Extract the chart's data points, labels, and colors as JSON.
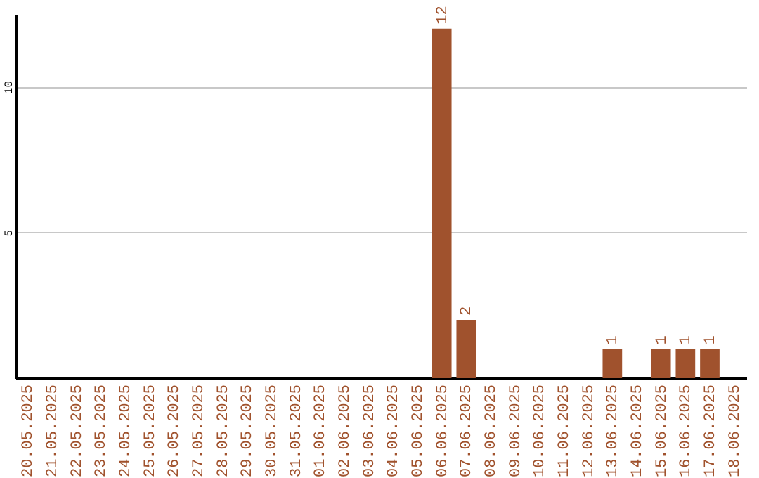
{
  "chart_data": {
    "type": "bar",
    "categories": [
      "20.05.2025",
      "21.05.2025",
      "22.05.2025",
      "23.05.2025",
      "24.05.2025",
      "25.05.2025",
      "26.05.2025",
      "27.05.2025",
      "28.05.2025",
      "29.05.2025",
      "30.05.2025",
      "31.05.2025",
      "01.06.2025",
      "02.06.2025",
      "03.06.2025",
      "04.06.2025",
      "05.06.2025",
      "06.06.2025",
      "07.06.2025",
      "08.06.2025",
      "09.06.2025",
      "10.06.2025",
      "11.06.2025",
      "12.06.2025",
      "13.06.2025",
      "14.06.2025",
      "15.06.2025",
      "16.06.2025",
      "17.06.2025",
      "18.06.2025"
    ],
    "values": [
      0,
      0,
      0,
      0,
      0,
      0,
      0,
      0,
      0,
      0,
      0,
      0,
      0,
      0,
      0,
      0,
      0,
      12,
      2,
      0,
      0,
      0,
      0,
      0,
      1,
      0,
      1,
      1,
      1,
      0
    ],
    "value_labels": [
      null,
      null,
      null,
      null,
      null,
      null,
      null,
      null,
      null,
      null,
      null,
      null,
      null,
      null,
      null,
      null,
      null,
      "12",
      "2",
      null,
      null,
      null,
      null,
      null,
      "1",
      null,
      "1",
      "1",
      "1",
      null
    ],
    "color": "#a0522d",
    "ylim": [
      0,
      12.5
    ],
    "yticks": [
      5,
      10
    ],
    "grid": "y"
  }
}
